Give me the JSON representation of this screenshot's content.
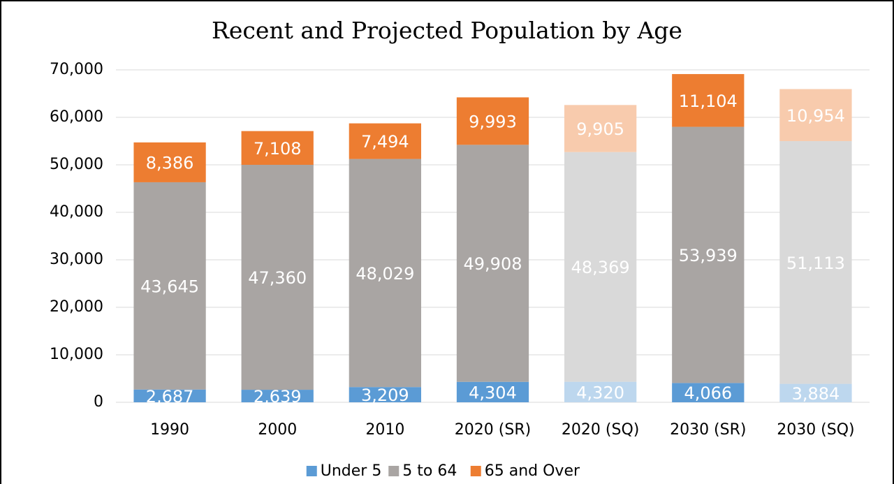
{
  "chart_data": {
    "type": "stacked_bar",
    "title": "Recent and Projected Population by Age",
    "categories": [
      "1990",
      "2000",
      "2010",
      "2020 (SR)",
      "2020 (SQ)",
      "2030 (SR)",
      "2030 (SQ)"
    ],
    "series": [
      {
        "name": "Under 5",
        "color": "#5b9bd5",
        "point_colors": [
          "#5b9bd5",
          "#5b9bd5",
          "#5b9bd5",
          "#5b9bd5",
          "#bdd7ee",
          "#5b9bd5",
          "#bdd7ee"
        ],
        "values": [
          2687,
          2639,
          3209,
          4304,
          4320,
          4066,
          3884
        ],
        "value_labels": [
          "2,687",
          "2,639",
          "3,209",
          "4,304",
          "4,320",
          "4,066",
          "3,884"
        ]
      },
      {
        "name": "5 to 64",
        "color": "#a9a5a3",
        "point_colors": [
          "#a9a5a3",
          "#a9a5a3",
          "#a9a5a3",
          "#a9a5a3",
          "#d9d9d9",
          "#a9a5a3",
          "#d9d9d9"
        ],
        "values": [
          43645,
          47360,
          48029,
          49908,
          48369,
          53939,
          51113
        ],
        "value_labels": [
          "43,645",
          "47,360",
          "48,029",
          "49,908",
          "48,369",
          "53,939",
          "51,113"
        ]
      },
      {
        "name": "65 and Over",
        "color": "#ed7d31",
        "point_colors": [
          "#ed7d31",
          "#ed7d31",
          "#ed7d31",
          "#ed7d31",
          "#f8cbad",
          "#ed7d31",
          "#f8cbad"
        ],
        "values": [
          8386,
          7108,
          7494,
          9993,
          9905,
          11104,
          10954
        ],
        "value_labels": [
          "8,386",
          "7,108",
          "7,494",
          "9,993",
          "9,905",
          "11,104",
          "10,954"
        ]
      }
    ],
    "ylim": [
      0,
      70000
    ],
    "yticks": [
      0,
      {
        "value": 10000,
        "label": "10,000"
      },
      {
        "value": 20000,
        "label": "20,000"
      },
      {
        "value": 30000,
        "label": "30,000"
      },
      {
        "value": 40000,
        "label": "40,000"
      },
      {
        "value": 50000,
        "label": "50,000"
      },
      {
        "value": 60000,
        "label": "60,000"
      },
      {
        "value": 70000,
        "label": "70,000"
      }
    ],
    "grid": true,
    "legend": "bottom"
  }
}
